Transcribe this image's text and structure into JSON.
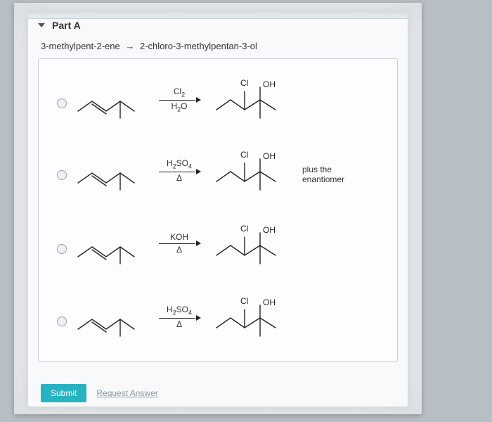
{
  "header": {
    "title": "Part A"
  },
  "reaction": {
    "left": "3-methylpent-2-ene",
    "arrow": "→",
    "right": "2-chloro-3-methylpentan-3-ol"
  },
  "product_labels": {
    "cl": "Cl",
    "oh": "OH"
  },
  "options": [
    {
      "reagent_top_html": "Cl<span class='sub'>2</span>",
      "reagent_bot_html": "H<span class='sub'>2</span>O",
      "note": ""
    },
    {
      "reagent_top_html": "H<span class='sub'>2</span>SO<span class='sub'>4</span>",
      "reagent_bot_html": "Δ",
      "note": "plus the\nenantiomer"
    },
    {
      "reagent_top_html": "KOH",
      "reagent_bot_html": "Δ",
      "note": ""
    },
    {
      "reagent_top_html": "H<span class='sub'>2</span>SO<span class='sub'>4</span>",
      "reagent_bot_html": "Δ",
      "note": ""
    }
  ],
  "buttons": {
    "submit": "Submit",
    "request": "Request Answer"
  },
  "style": {
    "stroke": "#222222",
    "stroke_width": 1.4,
    "radio_border": "#9aa4ab",
    "accent": "#29b2c1"
  }
}
